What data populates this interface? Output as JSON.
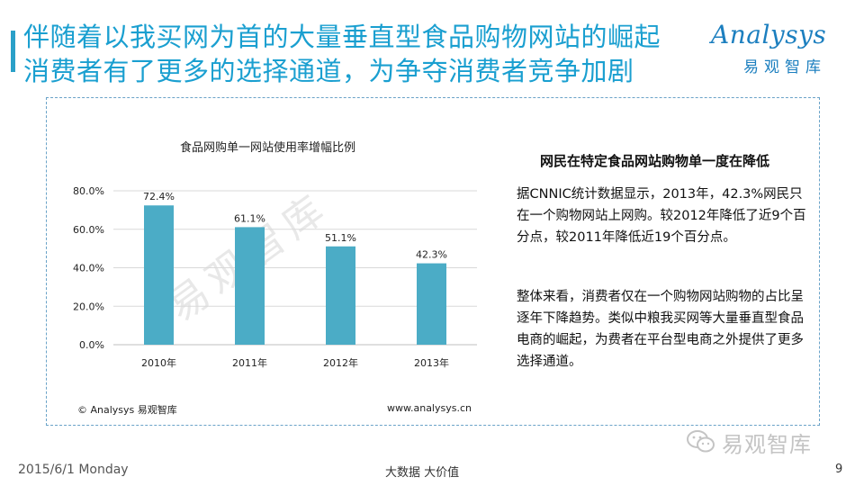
{
  "title": {
    "line1": "伴随着以我买网为首的大量垂直型食品购物网站的崛起",
    "line2": "消费者有了更多的选择通道，为争夺消费者竞争加剧"
  },
  "logo": {
    "brand": "Analysys",
    "subtitle": "易观智库",
    "color": "#1c7fbf"
  },
  "chart_data": {
    "type": "bar",
    "title": "食品网购单一网站使用率增幅比例",
    "categories": [
      "2010年",
      "2011年",
      "2012年",
      "2013年"
    ],
    "values": [
      72.4,
      61.1,
      51.1,
      42.3
    ],
    "value_labels": [
      "72.4%",
      "61.1%",
      "51.1%",
      "42.3%"
    ],
    "ylim": [
      0,
      80
    ],
    "yticks": [
      "0.0%",
      "20.0%",
      "40.0%",
      "60.0%",
      "80.0%"
    ],
    "ytick_values": [
      0,
      20,
      40,
      60,
      80
    ],
    "grid": true,
    "bar_color": "#4bacc6"
  },
  "watermark": "易观智库",
  "source": {
    "copyright": "© Analysys 易观智库",
    "website": "www.analysys.cn"
  },
  "side": {
    "heading": "网民在特定食品网站购物单一度在降低",
    "para1": "据CNNIC统计数据显示，2013年，42.3%网民只在一个购物网站上网购。较2012年降低了近9个百分点，较2011年降低近19个百分点。",
    "para2": "整体来看，消费者仅在一个购物网站购物的占比呈逐年下降趋势。类似中粮我买网等大量垂直型食品电商的崛起，为费者在平台型电商之外提供了更多选择通道。"
  },
  "wechat": {
    "icon": "wechat-icon",
    "label": "易观智库"
  },
  "footer": {
    "date": "2015/6/1 Monday",
    "slogan": "大数据   大价值",
    "page": "9"
  },
  "colors": {
    "accent": "#1a9fd0",
    "bar": "#4bacc6",
    "panel_border": "#6aa3c8"
  }
}
